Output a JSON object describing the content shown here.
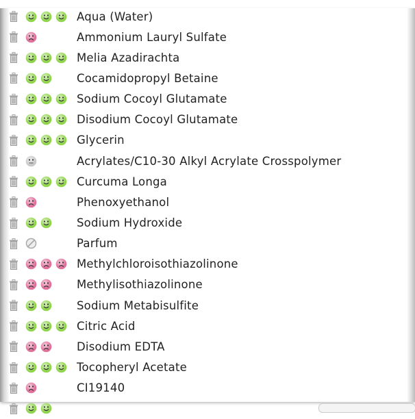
{
  "colors": {
    "good": "#8fd44a",
    "bad": "#e0709a",
    "neutral": "#c8c8c8"
  },
  "ingredients": [
    {
      "name": "Aqua (Water)",
      "rating": "good",
      "count": 3
    },
    {
      "name": "Ammonium Lauryl Sulfate",
      "rating": "bad",
      "count": 1
    },
    {
      "name": "Melia Azadirachta",
      "rating": "good",
      "count": 3
    },
    {
      "name": "Cocamidopropyl Betaine",
      "rating": "good",
      "count": 2
    },
    {
      "name": "Sodium Cocoyl Glutamate",
      "rating": "good",
      "count": 3
    },
    {
      "name": "Disodium Cocoyl Glutamate",
      "rating": "good",
      "count": 3
    },
    {
      "name": "Glycerin",
      "rating": "good",
      "count": 3
    },
    {
      "name": "Acrylates/C10-30 Alkyl Acrylate Crosspolymer",
      "rating": "neutral",
      "count": 1
    },
    {
      "name": "Curcuma Longa",
      "rating": "good",
      "count": 3
    },
    {
      "name": "Phenoxyethanol",
      "rating": "bad",
      "count": 1
    },
    {
      "name": "Sodium Hydroxide",
      "rating": "good",
      "count": 2
    },
    {
      "name": "Parfum",
      "rating": "unknown",
      "count": 1
    },
    {
      "name": "Methylchloroisothiazolinone",
      "rating": "bad",
      "count": 3
    },
    {
      "name": "Methylisothiazolinone",
      "rating": "bad",
      "count": 2
    },
    {
      "name": "Sodium Metabisulfite",
      "rating": "good",
      "count": 2
    },
    {
      "name": "Citric Acid",
      "rating": "good",
      "count": 3
    },
    {
      "name": "Disodium EDTA",
      "rating": "bad",
      "count": 2
    },
    {
      "name": "Tocopheryl Acetate",
      "rating": "good",
      "count": 3
    },
    {
      "name": "CI19140",
      "rating": "bad",
      "count": 1
    },
    {
      "name": "",
      "rating": "good",
      "count": 2
    }
  ]
}
